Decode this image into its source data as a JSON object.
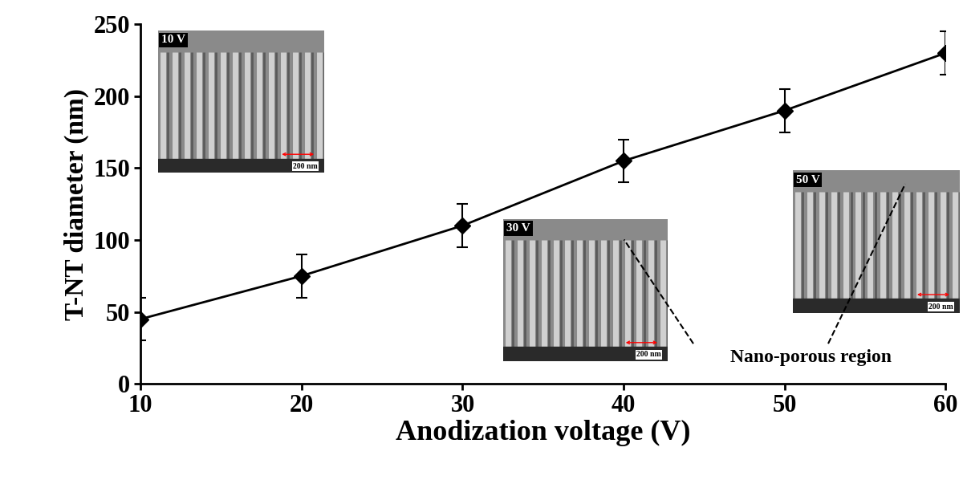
{
  "chart_data": {
    "type": "line",
    "x_label": "Anodization voltage (V)",
    "y_label": "T-NT diameter (nm)",
    "x": [
      10,
      20,
      30,
      40,
      50,
      60
    ],
    "series": [
      {
        "name": "T-NT diameter",
        "color": "#000000",
        "marker": "diamond",
        "line_style": "solid",
        "values": [
          45,
          75,
          110,
          155,
          190,
          230
        ],
        "errors": [
          15,
          15,
          15,
          15,
          15,
          15
        ]
      }
    ],
    "xlim": [
      10,
      60
    ],
    "xticks": [
      10,
      20,
      30,
      40,
      50,
      60
    ],
    "ylim": [
      0,
      250
    ],
    "yticks": [
      0,
      50,
      100,
      150,
      200,
      250
    ],
    "grid": false,
    "insets": [
      {
        "label": "10 V",
        "scale_bar": "200 nm"
      },
      {
        "label": "30 V",
        "scale_bar": "200 nm"
      },
      {
        "label": "50 V",
        "scale_bar": "200 nm"
      }
    ],
    "annotations": [
      "Nano-porous region"
    ]
  }
}
